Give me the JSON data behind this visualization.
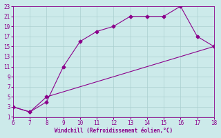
{
  "xlabel": "Windchill (Refroidissement éolien,°C)",
  "line1_x": [
    6,
    7,
    8,
    9,
    10,
    11,
    12,
    13,
    14,
    15,
    16,
    17,
    18
  ],
  "line1_y": [
    3,
    2,
    4,
    11,
    16,
    18,
    19,
    21,
    21,
    21,
    23,
    17,
    15
  ],
  "line2_x": [
    6,
    7,
    8,
    18
  ],
  "line2_y": [
    3,
    2,
    5,
    15
  ],
  "xlim": [
    6,
    18
  ],
  "ylim": [
    1,
    23
  ],
  "xticks": [
    6,
    7,
    8,
    9,
    10,
    11,
    12,
    13,
    14,
    15,
    16,
    17,
    18
  ],
  "yticks": [
    1,
    3,
    5,
    7,
    9,
    11,
    13,
    15,
    17,
    19,
    21,
    23
  ],
  "line_color": "#8B008B",
  "marker": "D",
  "marker_size": 2.5,
  "bg_color": "#cceaea",
  "grid_color": "#aacfcf",
  "tick_label_color": "#8B008B",
  "xlabel_color": "#8B008B",
  "tick_fontsize": 5.5,
  "xlabel_fontsize": 5.5
}
